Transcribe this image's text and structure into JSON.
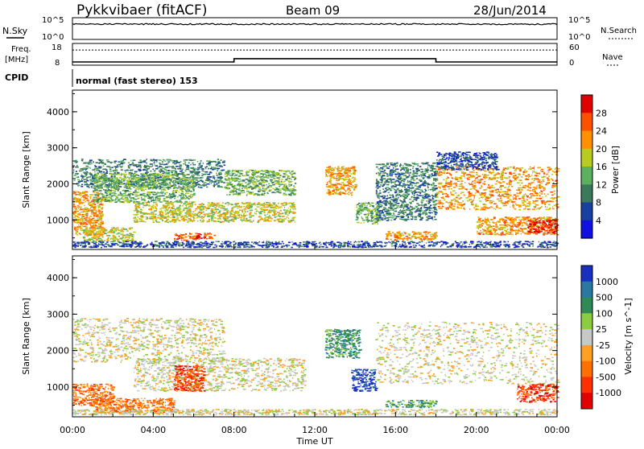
{
  "header": {
    "station": "Pykkvibaer (fitACF)",
    "beam": "Beam 09",
    "date": "28/Jun/2014"
  },
  "top_panels": {
    "nsky": {
      "label": "N.Sky",
      "ticks": [
        "10^5",
        "10^0"
      ],
      "right_label": "N.Search",
      "right_ticks": [
        "10^5",
        "10^0"
      ]
    },
    "freq": {
      "label_line1": "Freq.",
      "label_line2": "[MHz]",
      "ticks": [
        "18",
        "8"
      ],
      "right_label": "Nave",
      "right_ticks": [
        "60",
        "0"
      ],
      "segments": [
        {
          "t0": 0.0,
          "t1": 8.0,
          "freq_mhz": 9.5
        },
        {
          "t0": 8.0,
          "t1": 18.0,
          "freq_mhz": 11.0
        },
        {
          "t0": 18.0,
          "t1": 24.0,
          "freq_mhz": 9.5
        }
      ],
      "nave_level": 42
    },
    "cpid": {
      "label": "CPID",
      "text": "normal (fast stereo) 153"
    }
  },
  "chart_data": [
    {
      "type": "heatmap",
      "name": "power",
      "ylabel": "Slant Range [km]",
      "xlim": [
        0,
        24
      ],
      "ylim": [
        180,
        4600
      ],
      "yticks": [
        "1000",
        "2000",
        "3000",
        "4000"
      ],
      "colorbar": {
        "label": "Power [dB]",
        "ticks": [
          "4",
          "8",
          "12",
          "16",
          "20",
          "24",
          "28"
        ],
        "colors": [
          "#1010e0",
          "#1840a0",
          "#3a7a5a",
          "#5cb060",
          "#b8cc20",
          "#ff9000",
          "#ff5000",
          "#e00000"
        ]
      },
      "regions": [
        {
          "t0": 0.0,
          "t1": 7.5,
          "r0": 1900,
          "r1": 2700,
          "level": 2
        },
        {
          "t0": 0.0,
          "t1": 1.5,
          "r0": 600,
          "r1": 1800,
          "level": 5
        },
        {
          "t0": 1.0,
          "t1": 6.0,
          "r0": 1500,
          "r1": 2300,
          "level": 3
        },
        {
          "t0": 0.5,
          "t1": 3.0,
          "r0": 400,
          "r1": 800,
          "level": 4
        },
        {
          "t0": 5.0,
          "t1": 7.0,
          "r0": 450,
          "r1": 650,
          "level": 6
        },
        {
          "t0": 3.0,
          "t1": 11.0,
          "r0": 950,
          "r1": 1500,
          "level": 4
        },
        {
          "t0": 7.5,
          "t1": 11.0,
          "r0": 1700,
          "r1": 2400,
          "level": 3
        },
        {
          "t0": 12.5,
          "t1": 14.0,
          "r0": 1700,
          "r1": 2500,
          "level": 5
        },
        {
          "t0": 14.0,
          "t1": 15.2,
          "r0": 900,
          "r1": 1500,
          "level": 3
        },
        {
          "t0": 15.5,
          "t1": 18.0,
          "r0": 450,
          "r1": 700,
          "level": 5
        },
        {
          "t0": 15.0,
          "t1": 18.0,
          "r0": 1000,
          "r1": 2600,
          "level": 2
        },
        {
          "t0": 18.0,
          "t1": 24.0,
          "r0": 1300,
          "r1": 2500,
          "level": 5
        },
        {
          "t0": 18.0,
          "t1": 21.0,
          "r0": 2400,
          "r1": 2900,
          "level": 1
        },
        {
          "t0": 20.0,
          "t1": 24.0,
          "r0": 600,
          "r1": 1100,
          "level": 5
        },
        {
          "t0": 22.5,
          "t1": 24.0,
          "r0": 650,
          "r1": 1000,
          "level": 7
        },
        {
          "t0": 0.0,
          "t1": 24.0,
          "r0": 250,
          "r1": 420,
          "level": 1
        }
      ]
    },
    {
      "type": "heatmap",
      "name": "velocity",
      "ylabel": "Slant Range [km]",
      "xlabel": "Time UT",
      "xlim": [
        0,
        24
      ],
      "ylim": [
        180,
        4600
      ],
      "yticks": [
        "1000",
        "2000",
        "3000",
        "4000"
      ],
      "xticks": [
        "00:00",
        "04:00",
        "08:00",
        "12:00",
        "16:00",
        "20:00",
        "00:00"
      ],
      "colorbar": {
        "label": "Velocity [m s^-1]",
        "ticks": [
          "1000",
          "500",
          "100",
          "25",
          "-25",
          "-100",
          "-500",
          "-1000"
        ],
        "colors": [
          "#1830c0",
          "#2878a0",
          "#2f8a55",
          "#8ccc40",
          "#c8c8c8",
          "#ffa020",
          "#ff7000",
          "#ff3000",
          "#e00000"
        ]
      },
      "regions": [
        {
          "t0": 0.0,
          "t1": 7.5,
          "r0": 1700,
          "r1": 2900,
          "level": 4
        },
        {
          "t0": 3.0,
          "t1": 11.5,
          "r0": 900,
          "r1": 1800,
          "level": 4
        },
        {
          "t0": 0.0,
          "t1": 2.0,
          "r0": 500,
          "r1": 1100,
          "level": 6
        },
        {
          "t0": 1.0,
          "t1": 5.0,
          "r0": 300,
          "r1": 700,
          "level": 6
        },
        {
          "t0": 12.5,
          "t1": 14.2,
          "r0": 1800,
          "r1": 2600,
          "level": 2
        },
        {
          "t0": 13.8,
          "t1": 15.0,
          "r0": 900,
          "r1": 1500,
          "level": 0
        },
        {
          "t0": 15.5,
          "t1": 18.0,
          "r0": 450,
          "r1": 650,
          "level": 2
        },
        {
          "t0": 15.0,
          "t1": 24.0,
          "r0": 1100,
          "r1": 2800,
          "level": 4
        },
        {
          "t0": 22.0,
          "t1": 24.0,
          "r0": 600,
          "r1": 1100,
          "level": 7
        },
        {
          "t0": 5.0,
          "t1": 6.5,
          "r0": 900,
          "r1": 1600,
          "level": 7
        },
        {
          "t0": 0.0,
          "t1": 24.0,
          "r0": 250,
          "r1": 400,
          "level": 4
        }
      ]
    }
  ]
}
